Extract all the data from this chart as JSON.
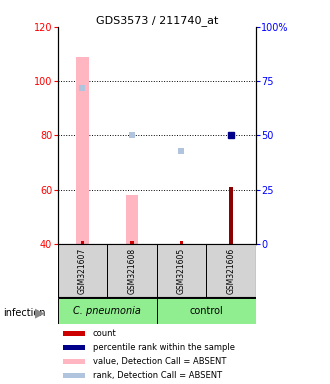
{
  "title": "GDS3573 / 211740_at",
  "samples": [
    "GSM321607",
    "GSM321608",
    "GSM321605",
    "GSM321606"
  ],
  "ylim_left": [
    40,
    120
  ],
  "ylim_right": [
    0,
    100
  ],
  "yticks_left": [
    40,
    60,
    80,
    100,
    120
  ],
  "yticks_right": [
    0,
    25,
    50,
    75,
    100
  ],
  "ytick_labels_right": [
    "0",
    "25",
    "50",
    "75",
    "100%"
  ],
  "value_absent_bars": [
    109,
    58,
    0,
    0
  ],
  "value_absent_color": "#FFB6C1",
  "value_bar_width": 0.25,
  "count_values": [
    40.5,
    40.5,
    40.5,
    61
  ],
  "count_colors": [
    "#cc0000",
    "#cc0000",
    "#cc0000",
    "#8B0000"
  ],
  "count_bar_width": 0.08,
  "count_absent": [
    true,
    true,
    true,
    false
  ],
  "pct_rank_present": [
    null,
    null,
    null,
    50
  ],
  "pct_rank_absent": [
    72,
    50,
    43,
    null
  ],
  "pct_rank_color": "#00008B",
  "pct_rank_absent_color": "#B0C4DE",
  "hlines": [
    60,
    80,
    100
  ],
  "legend": [
    {
      "color": "#cc0000",
      "label": "count"
    },
    {
      "color": "#00008B",
      "label": "percentile rank within the sample"
    },
    {
      "color": "#FFB6C1",
      "label": "value, Detection Call = ABSENT"
    },
    {
      "color": "#B0C4DE",
      "label": "rank, Detection Call = ABSENT"
    }
  ]
}
